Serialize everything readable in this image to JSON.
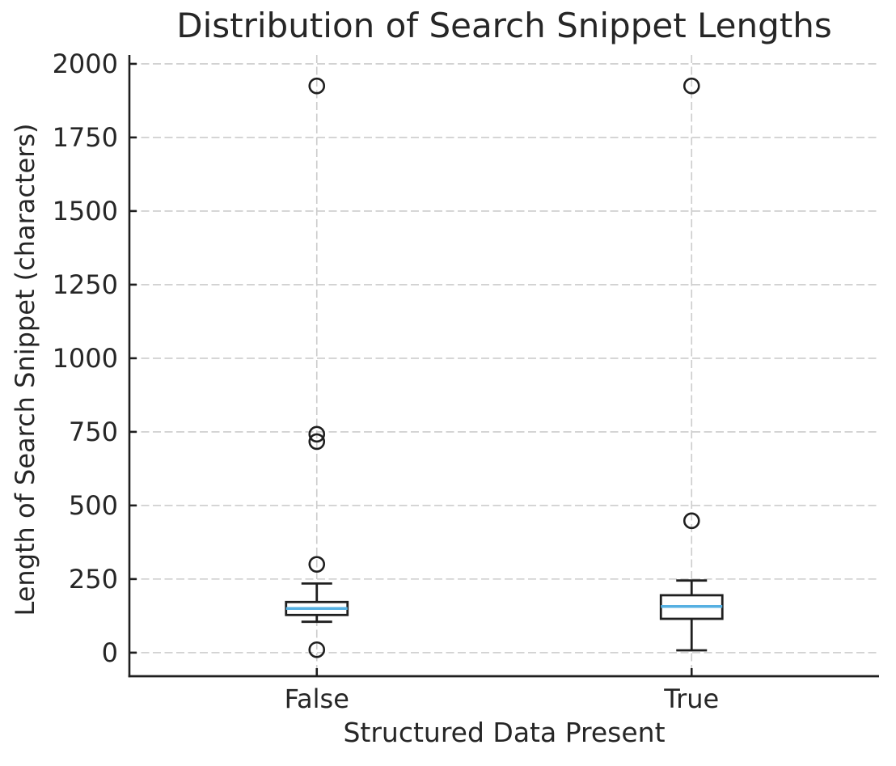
{
  "chart_data": {
    "type": "boxplot",
    "title": "Distribution of Search Snippet Lengths",
    "xlabel": "Structured Data Present",
    "ylabel": "Length of Search Snippet (characters)",
    "categories": [
      "False",
      "True"
    ],
    "yticks": [
      0,
      250,
      500,
      750,
      1000,
      1250,
      1500,
      1750,
      2000
    ],
    "ylim": [
      -80,
      2030
    ],
    "grid": true,
    "grid_style": "dashed",
    "legend": false,
    "series": [
      {
        "category": "False",
        "whisker_low": 105,
        "q1": 128,
        "median": 150,
        "q3": 172,
        "whisker_high": 235,
        "outliers": [
          10,
          300,
          717,
          742,
          1925
        ]
      },
      {
        "category": "True",
        "whisker_low": 8,
        "q1": 115,
        "median": 157,
        "q3": 195,
        "whisker_high": 245,
        "outliers": [
          448,
          1925
        ]
      }
    ],
    "colors": {
      "median": "#56b0e2",
      "line": "#1f1f1f",
      "box_fill": "#ffffff",
      "grid": "#cccccc",
      "text": "#262626",
      "background": "#ffffff"
    }
  }
}
